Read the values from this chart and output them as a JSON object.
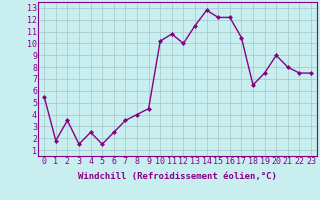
{
  "x": [
    0,
    1,
    2,
    3,
    4,
    5,
    6,
    7,
    8,
    9,
    10,
    11,
    12,
    13,
    14,
    15,
    16,
    17,
    18,
    19,
    20,
    21,
    22,
    23
  ],
  "y": [
    5.5,
    1.8,
    3.5,
    1.5,
    2.5,
    1.5,
    2.5,
    3.5,
    4.0,
    4.5,
    10.2,
    10.8,
    10.0,
    11.5,
    12.8,
    12.2,
    12.2,
    10.5,
    6.5,
    7.5,
    9.0,
    8.0,
    7.5,
    7.5
  ],
  "line_color": "#880088",
  "marker": "D",
  "marker_size": 2.0,
  "bg_color": "#c8eef0",
  "grid_color": "#aacccc",
  "xlabel": "Windchill (Refroidissement éolien,°C)",
  "xticks": [
    0,
    1,
    2,
    3,
    4,
    5,
    6,
    7,
    8,
    9,
    10,
    11,
    12,
    13,
    14,
    15,
    16,
    17,
    18,
    19,
    20,
    21,
    22,
    23
  ],
  "yticks": [
    1,
    2,
    3,
    4,
    5,
    6,
    7,
    8,
    9,
    10,
    11,
    12,
    13
  ],
  "ylim": [
    0.5,
    13.5
  ],
  "xlim": [
    -0.5,
    23.5
  ],
  "xlabel_fontsize": 6.5,
  "tick_fontsize": 6.0,
  "linewidth": 1.0
}
